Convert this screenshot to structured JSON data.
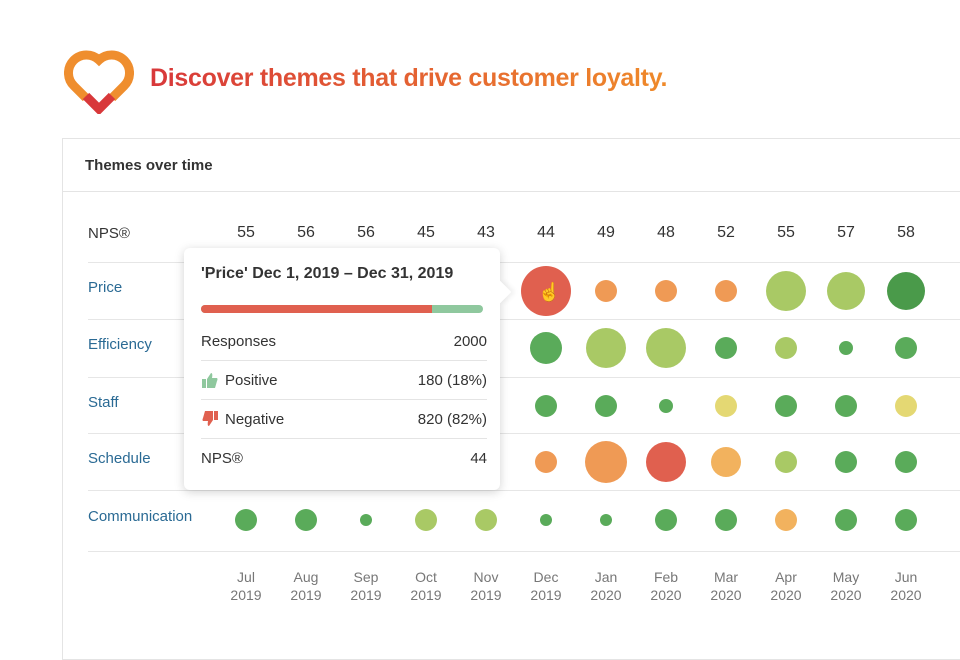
{
  "header": {
    "headline": "Discover themes that drive customer loyalty."
  },
  "card": {
    "title": "Themes over time"
  },
  "nps": {
    "label": "NPS®",
    "values": [
      "55",
      "56",
      "56",
      "45",
      "43",
      "44",
      "49",
      "48",
      "52",
      "55",
      "57",
      "58"
    ]
  },
  "months": [
    [
      "Jul",
      "2019"
    ],
    [
      "Aug",
      "2019"
    ],
    [
      "Sep",
      "2019"
    ],
    [
      "Oct",
      "2019"
    ],
    [
      "Nov",
      "2019"
    ],
    [
      "Dec",
      "2019"
    ],
    [
      "Jan",
      "2020"
    ],
    [
      "Feb",
      "2020"
    ],
    [
      "Mar",
      "2020"
    ],
    [
      "Apr",
      "2020"
    ],
    [
      "May",
      "2020"
    ],
    [
      "Jun",
      "2020"
    ]
  ],
  "colors": {
    "red": "#e0604f",
    "orange": "#ef9a55",
    "lightorange": "#f2b25e",
    "yellow": "#e4d873",
    "lightgreen": "#a9c965",
    "green": "#5aab5a",
    "darkgreen": "#4a9a4a"
  },
  "themes": [
    {
      "label": "Price",
      "bubbles": [
        null,
        null,
        null,
        null,
        null,
        [
          "red",
          25
        ],
        [
          "orange",
          11
        ],
        [
          "orange",
          11
        ],
        [
          "orange",
          11
        ],
        [
          "lightgreen",
          20
        ],
        [
          "lightgreen",
          19
        ],
        [
          "darkgreen",
          19
        ]
      ]
    },
    {
      "label": "Efficiency",
      "bubbles": [
        null,
        null,
        null,
        null,
        null,
        [
          "green",
          16
        ],
        [
          "lightgreen",
          20
        ],
        [
          "lightgreen",
          20
        ],
        [
          "green",
          11
        ],
        [
          "lightgreen",
          11
        ],
        [
          "green",
          7
        ],
        [
          "green",
          11
        ]
      ]
    },
    {
      "label": "Staff",
      "bubbles": [
        null,
        null,
        null,
        null,
        null,
        [
          "green",
          11
        ],
        [
          "green",
          11
        ],
        [
          "green",
          7
        ],
        [
          "yellow",
          11
        ],
        [
          "green",
          11
        ],
        [
          "green",
          11
        ],
        [
          "yellow",
          11
        ]
      ]
    },
    {
      "label": "Schedule",
      "bubbles": [
        null,
        null,
        null,
        null,
        null,
        [
          "orange",
          11
        ],
        [
          "orange",
          21
        ],
        [
          "red",
          20
        ],
        [
          "lightorange",
          15
        ],
        [
          "lightgreen",
          11
        ],
        [
          "green",
          11
        ],
        [
          "green",
          11
        ]
      ]
    },
    {
      "label": "Communication",
      "bubbles": [
        [
          "green",
          11
        ],
        [
          "green",
          11
        ],
        [
          "green",
          6
        ],
        [
          "lightgreen",
          11
        ],
        [
          "lightgreen",
          11
        ],
        [
          "green",
          6
        ],
        [
          "green",
          6
        ],
        [
          "green",
          11
        ],
        [
          "green",
          11
        ],
        [
          "lightorange",
          11
        ],
        [
          "green",
          11
        ],
        [
          "green",
          11
        ]
      ]
    }
  ],
  "tooltip": {
    "title": "'Price' Dec 1, 2019 – Dec 31, 2019",
    "negative_share": 0.82,
    "rows": [
      {
        "label": "Responses",
        "value": "2000"
      },
      {
        "label": "Positive",
        "value": "180 (18%)",
        "icon": "thumbs-up"
      },
      {
        "label": "Negative",
        "value": "820 (82%)",
        "icon": "thumbs-down"
      },
      {
        "label": "NPS®",
        "value": "44"
      }
    ]
  }
}
